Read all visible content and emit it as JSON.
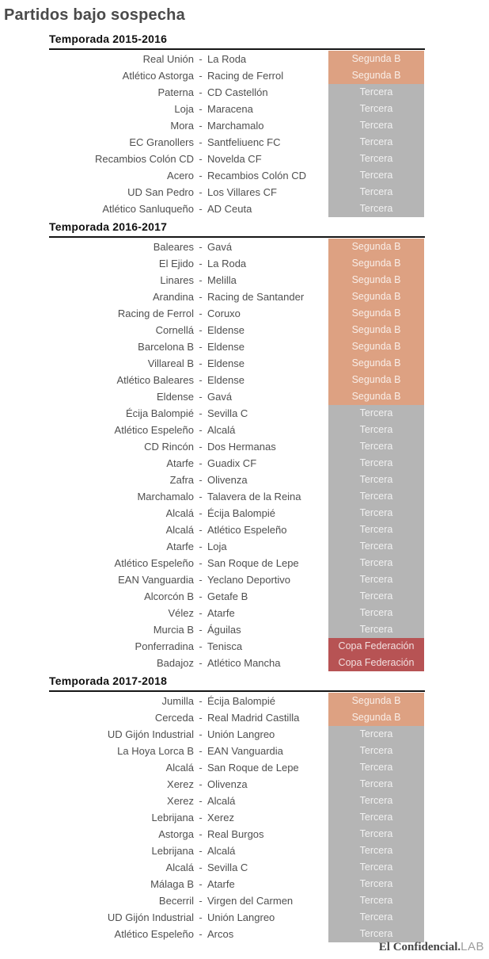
{
  "page": {
    "title": "Partidos bajo sospecha",
    "separator": "-"
  },
  "footer": {
    "brand": "El Confidencial.",
    "lab": "LAB"
  },
  "chart_data": {
    "type": "table",
    "title": "Partidos bajo sospecha",
    "columns": [
      "home",
      "away",
      "division"
    ],
    "division_colors": {
      "Segunda B": "#dda182",
      "Tercera": "#b5b5b5",
      "Copa Federación": "#b75354"
    },
    "sections": [
      {
        "title": "Temporada 2015-2016",
        "matches": [
          {
            "home": "Real Unión",
            "away": "La Roda",
            "division": "Segunda B"
          },
          {
            "home": "Atlético Astorga",
            "away": "Racing de Ferrol",
            "division": "Segunda B"
          },
          {
            "home": "Paterna",
            "away": "CD Castellón",
            "division": "Tercera"
          },
          {
            "home": "Loja",
            "away": "Maracena",
            "division": "Tercera"
          },
          {
            "home": "Mora",
            "away": "Marchamalo",
            "division": "Tercera"
          },
          {
            "home": "EC Granollers",
            "away": "Santfeliuenc FC",
            "division": "Tercera"
          },
          {
            "home": "Recambios Colón CD",
            "away": "Novelda CF",
            "division": "Tercera"
          },
          {
            "home": "Acero",
            "away": "Recambios Colón CD",
            "division": "Tercera"
          },
          {
            "home": "UD San Pedro",
            "away": "Los Villares CF",
            "division": "Tercera"
          },
          {
            "home": "Atlético Sanluqueño",
            "away": "AD Ceuta",
            "division": "Tercera"
          }
        ]
      },
      {
        "title": "Temporada 2016-2017",
        "matches": [
          {
            "home": "Baleares",
            "away": "Gavá",
            "division": "Segunda B"
          },
          {
            "home": "El Ejido",
            "away": "La Roda",
            "division": "Segunda B"
          },
          {
            "home": "Linares",
            "away": "Melilla",
            "division": "Segunda B"
          },
          {
            "home": "Arandina",
            "away": "Racing de Santander",
            "division": "Segunda B"
          },
          {
            "home": "Racing de Ferrol",
            "away": "Coruxo",
            "division": "Segunda B"
          },
          {
            "home": "Cornellá",
            "away": "Eldense",
            "division": "Segunda B"
          },
          {
            "home": "Barcelona B",
            "away": "Eldense",
            "division": "Segunda B"
          },
          {
            "home": "Villareal B",
            "away": "Eldense",
            "division": "Segunda B"
          },
          {
            "home": "Atlético Baleares",
            "away": "Eldense",
            "division": "Segunda B"
          },
          {
            "home": "Eldense",
            "away": "Gavá",
            "division": "Segunda B"
          },
          {
            "home": "Écija Balompié",
            "away": "Sevilla C",
            "division": "Tercera"
          },
          {
            "home": "Atlético Espeleño",
            "away": "Alcalá",
            "division": "Tercera"
          },
          {
            "home": "CD Rincón",
            "away": "Dos Hermanas",
            "division": "Tercera"
          },
          {
            "home": "Atarfe",
            "away": "Guadix CF",
            "division": "Tercera"
          },
          {
            "home": "Zafra",
            "away": "Olivenza",
            "division": "Tercera"
          },
          {
            "home": "Marchamalo",
            "away": "Talavera de la Reina",
            "division": "Tercera"
          },
          {
            "home": "Alcalá",
            "away": "Écija Balompié",
            "division": "Tercera"
          },
          {
            "home": "Alcalá",
            "away": "Atlético Espeleño",
            "division": "Tercera"
          },
          {
            "home": "Atarfe",
            "away": "Loja",
            "division": "Tercera"
          },
          {
            "home": "Atlético Espeleño",
            "away": "San Roque de Lepe",
            "division": "Tercera"
          },
          {
            "home": "EAN Vanguardia",
            "away": "Yeclano Deportivo",
            "division": "Tercera"
          },
          {
            "home": "Alcorcón B",
            "away": "Getafe B",
            "division": "Tercera"
          },
          {
            "home": "Vélez",
            "away": "Atarfe",
            "division": "Tercera"
          },
          {
            "home": "Murcia B",
            "away": "Águilas",
            "division": "Tercera"
          },
          {
            "home": "Ponferradina",
            "away": "Tenisca",
            "division": "Copa Federación"
          },
          {
            "home": "Badajoz",
            "away": "Atlético Mancha",
            "division": "Copa Federación"
          }
        ]
      },
      {
        "title": "Temporada 2017-2018",
        "matches": [
          {
            "home": "Jumilla",
            "away": "Écija Balompié",
            "division": "Segunda B"
          },
          {
            "home": "Cerceda",
            "away": "Real Madrid Castilla",
            "division": "Segunda B"
          },
          {
            "home": "UD Gijón Industrial",
            "away": "Unión Langreo",
            "division": "Tercera"
          },
          {
            "home": "La Hoya Lorca B",
            "away": "EAN Vanguardia",
            "division": "Tercera"
          },
          {
            "home": "Alcalá",
            "away": "San Roque de Lepe",
            "division": "Tercera"
          },
          {
            "home": "Xerez",
            "away": "Olivenza",
            "division": "Tercera"
          },
          {
            "home": "Xerez",
            "away": "Alcalá",
            "division": "Tercera"
          },
          {
            "home": "Lebrijana",
            "away": "Xerez",
            "division": "Tercera"
          },
          {
            "home": "Astorga",
            "away": "Real Burgos",
            "division": "Tercera"
          },
          {
            "home": "Lebrijana",
            "away": "Alcalá",
            "division": "Tercera"
          },
          {
            "home": "Alcalá",
            "away": "Sevilla C",
            "division": "Tercera"
          },
          {
            "home": "Málaga B",
            "away": "Atarfe",
            "division": "Tercera"
          },
          {
            "home": "Becerril",
            "away": "Virgen del Carmen",
            "division": "Tercera"
          },
          {
            "home": "UD Gijón Industrial",
            "away": "Unión Langreo",
            "division": "Tercera"
          },
          {
            "home": "Atlético Espeleño",
            "away": "Arcos",
            "division": "Tercera"
          }
        ]
      }
    ]
  }
}
